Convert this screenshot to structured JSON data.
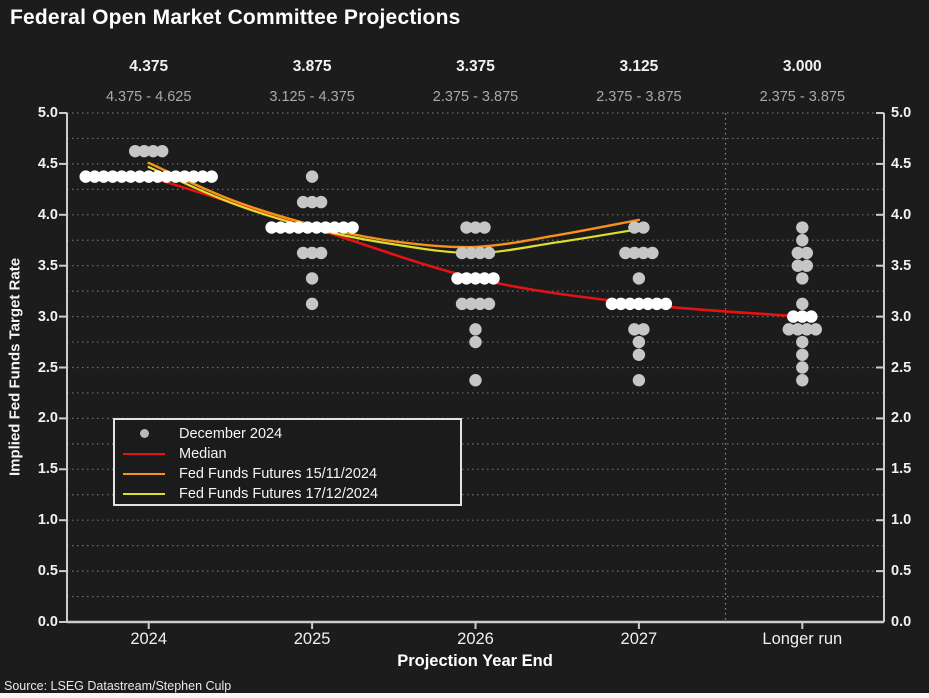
{
  "title": "Federal Open Market Committee Projections",
  "source": "Source: LSEG Datastream/Stephen Culp",
  "colors": {
    "background": "#1c1c1c",
    "median_line": "#e01414",
    "futures_nov": "#f5921d",
    "futures_dec": "#dfdf2b",
    "dot": "#c6c6c6",
    "dot_median": "#ffffff",
    "legend_dot": "#b9b9b9",
    "grid": "#6e6e6e",
    "axis": "#cccccc",
    "text": "#f5f5f5",
    "range_text": "#a9a9a9"
  },
  "chart_data": {
    "type": "scatter",
    "title": "Federal Open Market Committee Projections",
    "xlabel": "Projection Year End",
    "ylabel": "Implied Fed Funds Target Rate",
    "ylim": [
      0.0,
      5.0
    ],
    "ytick_step": 0.5,
    "grid_step": 0.25,
    "grid": "dotted horizontal lines every 0.25",
    "legend_position": "lower-left",
    "categories": [
      "2024",
      "2025",
      "2026",
      "2027",
      "Longer run"
    ],
    "separator_after_category": 3,
    "column_annotations": [
      {
        "median": "4.375",
        "range": "4.375 - 4.625"
      },
      {
        "median": "3.875",
        "range": "3.125 - 4.375"
      },
      {
        "median": "3.375",
        "range": "2.375 - 3.875"
      },
      {
        "median": "3.125",
        "range": "2.375 - 3.875"
      },
      {
        "median": "3.000",
        "range": "2.375 - 3.875"
      }
    ],
    "dot_series": {
      "name": "December 2024",
      "groups": [
        {
          "category": "2024",
          "points": [
            {
              "rate": 4.625,
              "count": 4
            },
            {
              "rate": 4.375,
              "count": 15,
              "is_median": true
            }
          ]
        },
        {
          "category": "2025",
          "points": [
            {
              "rate": 4.375,
              "count": 1
            },
            {
              "rate": 4.125,
              "count": 3
            },
            {
              "rate": 3.875,
              "count": 10,
              "is_median": true
            },
            {
              "rate": 3.625,
              "count": 3
            },
            {
              "rate": 3.375,
              "count": 1
            },
            {
              "rate": 3.125,
              "count": 1
            }
          ]
        },
        {
          "category": "2026",
          "points": [
            {
              "rate": 3.875,
              "count": 3
            },
            {
              "rate": 3.625,
              "count": 4
            },
            {
              "rate": 3.375,
              "count": 5,
              "is_median": true
            },
            {
              "rate": 3.125,
              "count": 4
            },
            {
              "rate": 2.875,
              "count": 1
            },
            {
              "rate": 2.75,
              "count": 1
            },
            {
              "rate": 2.375,
              "count": 1
            }
          ]
        },
        {
          "category": "2027",
          "points": [
            {
              "rate": 3.875,
              "count": 2
            },
            {
              "rate": 3.625,
              "count": 4
            },
            {
              "rate": 3.375,
              "count": 1
            },
            {
              "rate": 3.125,
              "count": 7,
              "is_median": true
            },
            {
              "rate": 2.875,
              "count": 2
            },
            {
              "rate": 2.75,
              "count": 1
            },
            {
              "rate": 2.625,
              "count": 1
            },
            {
              "rate": 2.375,
              "count": 1
            }
          ]
        },
        {
          "category": "Longer run",
          "points": [
            {
              "rate": 3.875,
              "count": 1
            },
            {
              "rate": 3.75,
              "count": 1
            },
            {
              "rate": 3.625,
              "count": 2
            },
            {
              "rate": 3.5,
              "count": 2
            },
            {
              "rate": 3.375,
              "count": 1
            },
            {
              "rate": 3.125,
              "count": 1
            },
            {
              "rate": 3.0,
              "count": 3,
              "is_median": true
            },
            {
              "rate": 2.875,
              "count": 4
            },
            {
              "rate": 2.75,
              "count": 1
            },
            {
              "rate": 2.625,
              "count": 1
            },
            {
              "rate": 2.5,
              "count": 1
            },
            {
              "rate": 2.375,
              "count": 1
            }
          ]
        }
      ]
    },
    "lines": [
      {
        "name": "Median",
        "color_key": "median_line",
        "width": 2.6,
        "points": [
          [
            0,
            4.375
          ],
          [
            1,
            3.875
          ],
          [
            2,
            3.375
          ],
          [
            3,
            3.125
          ],
          [
            4,
            3.0
          ]
        ]
      },
      {
        "name": "Fed Funds Futures 15/11/2024",
        "color_key": "futures_nov",
        "width": 2.4,
        "points": [
          [
            0,
            4.51
          ],
          [
            0.5,
            4.15
          ],
          [
            1,
            3.9
          ],
          [
            1.5,
            3.74
          ],
          [
            2,
            3.685
          ],
          [
            2.5,
            3.8
          ],
          [
            3,
            3.95
          ]
        ]
      },
      {
        "name": "Fed Funds Futures 17/12/2024",
        "color_key": "futures_dec",
        "width": 2.2,
        "points": [
          [
            0,
            4.47
          ],
          [
            0.5,
            4.12
          ],
          [
            1,
            3.87
          ],
          [
            1.5,
            3.71
          ],
          [
            2,
            3.625
          ],
          [
            2.5,
            3.73
          ],
          [
            3,
            3.86
          ]
        ]
      }
    ],
    "legend": {
      "entries": [
        {
          "label": "December 2024",
          "type": "dot",
          "color_key": "legend_dot"
        },
        {
          "label": "Median",
          "type": "line",
          "color_key": "median_line"
        },
        {
          "label": "Fed Funds Futures 15/11/2024",
          "type": "line",
          "color_key": "futures_nov"
        },
        {
          "label": "Fed Funds Futures 17/12/2024",
          "type": "line",
          "color_key": "futures_dec"
        }
      ]
    }
  }
}
